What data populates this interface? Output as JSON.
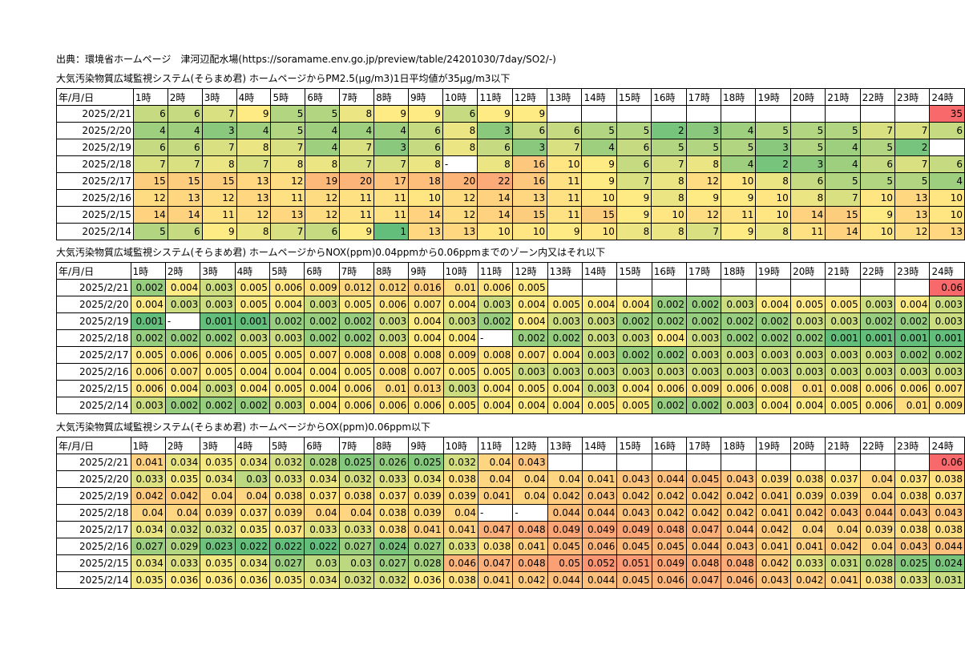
{
  "source": "出典：環境省ホームページ　津河辺配水場(https://soramame.env.go.jp/preview/table/24201030/7day/SO2/-)",
  "header_labels": [
    "年/月/日",
    "1時",
    "2時",
    "3時",
    "4時",
    "5時",
    "6時",
    "7時",
    "8時",
    "9時",
    "10時",
    "11時",
    "12時",
    "13時",
    "14時",
    "15時",
    "16時",
    "17時",
    "18時",
    "19時",
    "20時",
    "21時",
    "22時",
    "23時",
    "24時"
  ],
  "dates": [
    "2025/2/21",
    "2025/2/20",
    "2025/2/19",
    "2025/2/18",
    "2025/2/17",
    "2025/2/16",
    "2025/2/15",
    "2025/2/14"
  ],
  "sections": [
    {
      "title": "大気汚染物質広域監視システム(そらまめ君) ホームページからPM2.5(μg/m3)1日平均値が35μg/m3以下",
      "scale": {
        "low": 1,
        "mid": 9,
        "high": 35
      },
      "rows": [
        [
          "6",
          "6",
          "7",
          "9",
          "5",
          "5",
          "8",
          "9",
          "9",
          "6",
          "9",
          "9",
          "",
          "",
          "",
          "",
          "",
          "",
          "",
          "",
          "",
          "",
          "",
          "35"
        ],
        [
          "4",
          "4",
          "3",
          "4",
          "5",
          "4",
          "4",
          "4",
          "6",
          "8",
          "3",
          "6",
          "6",
          "5",
          "5",
          "2",
          "3",
          "4",
          "5",
          "5",
          "5",
          "7",
          "7",
          "6"
        ],
        [
          "6",
          "6",
          "7",
          "8",
          "7",
          "4",
          "7",
          "3",
          "6",
          "8",
          "6",
          "3",
          "7",
          "4",
          "6",
          "5",
          "5",
          "5",
          "3",
          "5",
          "4",
          "5",
          "2",
          ""
        ],
        [
          "7",
          "7",
          "8",
          "7",
          "8",
          "8",
          "7",
          "7",
          "8",
          "-",
          "8",
          "16",
          "10",
          "9",
          "6",
          "7",
          "8",
          "4",
          "2",
          "3",
          "4",
          "6",
          "7",
          "6"
        ],
        [
          "15",
          "15",
          "15",
          "13",
          "12",
          "19",
          "20",
          "17",
          "18",
          "20",
          "22",
          "16",
          "11",
          "9",
          "7",
          "8",
          "12",
          "10",
          "8",
          "6",
          "5",
          "5",
          "5",
          "4"
        ],
        [
          "12",
          "13",
          "12",
          "13",
          "11",
          "12",
          "11",
          "11",
          "10",
          "12",
          "14",
          "13",
          "11",
          "10",
          "9",
          "8",
          "9",
          "9",
          "10",
          "8",
          "7",
          "10",
          "13",
          "10"
        ],
        [
          "14",
          "14",
          "11",
          "12",
          "13",
          "12",
          "11",
          "11",
          "14",
          "12",
          "14",
          "15",
          "11",
          "15",
          "9",
          "10",
          "12",
          "11",
          "10",
          "14",
          "15",
          "9",
          "13",
          "10"
        ],
        [
          "5",
          "6",
          "9",
          "8",
          "7",
          "6",
          "9",
          "1",
          "13",
          "13",
          "10",
          "10",
          "9",
          "10",
          "8",
          "8",
          "7",
          "9",
          "8",
          "11",
          "14",
          "10",
          "12",
          "13"
        ]
      ]
    },
    {
      "title": "大気汚染物質広域監視システム(そらまめ君) ホームページからNOX(ppm)0.04ppmから0.06ppmまでのゾーン内又はそれ以下",
      "scale": {
        "low": 0.001,
        "mid": 0.004,
        "high": 0.06
      },
      "rows": [
        [
          "0.002",
          "0.004",
          "0.003",
          "0.005",
          "0.006",
          "0.009",
          "0.012",
          "0.012",
          "0.016",
          "0.01",
          "0.006",
          "0.005",
          "",
          "",
          "",
          "",
          "",
          "",
          "",
          "",
          "",
          "",
          "",
          "0.06"
        ],
        [
          "0.004",
          "0.003",
          "0.003",
          "0.005",
          "0.004",
          "0.003",
          "0.005",
          "0.006",
          "0.007",
          "0.004",
          "0.003",
          "0.004",
          "0.005",
          "0.004",
          "0.004",
          "0.002",
          "0.002",
          "0.003",
          "0.004",
          "0.005",
          "0.005",
          "0.003",
          "0.004",
          "0.003"
        ],
        [
          "0.001",
          "-",
          "0.001",
          "0.001",
          "0.002",
          "0.002",
          "0.002",
          "0.003",
          "0.004",
          "0.003",
          "0.002",
          "0.004",
          "0.003",
          "0.003",
          "0.002",
          "0.002",
          "0.002",
          "0.002",
          "0.002",
          "0.003",
          "0.003",
          "0.002",
          "0.002",
          "0.003"
        ],
        [
          "0.002",
          "0.002",
          "0.002",
          "0.003",
          "0.003",
          "0.002",
          "0.002",
          "0.003",
          "0.004",
          "0.004",
          "-",
          "0.002",
          "0.002",
          "0.003",
          "0.003",
          "0.004",
          "0.003",
          "0.002",
          "0.002",
          "0.002",
          "0.001",
          "0.001",
          "0.001",
          "0.001"
        ],
        [
          "0.005",
          "0.006",
          "0.006",
          "0.005",
          "0.005",
          "0.007",
          "0.008",
          "0.008",
          "0.008",
          "0.009",
          "0.008",
          "0.007",
          "0.004",
          "0.003",
          "0.002",
          "0.002",
          "0.003",
          "0.003",
          "0.003",
          "0.003",
          "0.003",
          "0.003",
          "0.002",
          "0.002"
        ],
        [
          "0.006",
          "0.007",
          "0.005",
          "0.004",
          "0.004",
          "0.004",
          "0.005",
          "0.008",
          "0.007",
          "0.005",
          "0.005",
          "0.003",
          "0.003",
          "0.003",
          "0.003",
          "0.003",
          "0.003",
          "0.003",
          "0.003",
          "0.003",
          "0.003",
          "0.003",
          "0.003",
          "0.003"
        ],
        [
          "0.006",
          "0.004",
          "0.003",
          "0.004",
          "0.005",
          "0.004",
          "0.006",
          "0.01",
          "0.013",
          "0.003",
          "0.004",
          "0.005",
          "0.004",
          "0.003",
          "0.004",
          "0.006",
          "0.009",
          "0.006",
          "0.008",
          "0.01",
          "0.008",
          "0.006",
          "0.006",
          "0.007"
        ],
        [
          "0.003",
          "0.002",
          "0.002",
          "0.002",
          "0.003",
          "0.004",
          "0.006",
          "0.006",
          "0.006",
          "0.005",
          "0.004",
          "0.004",
          "0.004",
          "0.005",
          "0.005",
          "0.002",
          "0.002",
          "0.003",
          "0.004",
          "0.004",
          "0.005",
          "0.006",
          "0.01",
          "0.009"
        ]
      ]
    },
    {
      "title": "大気汚染物質広域監視システム(そらまめ君) ホームページからOX(ppm)0.06ppm以下",
      "scale": {
        "low": 0.022,
        "mid": 0.036,
        "high": 0.06
      },
      "rows": [
        [
          "0.041",
          "0.034",
          "0.035",
          "0.034",
          "0.032",
          "0.028",
          "0.025",
          "0.026",
          "0.025",
          "0.032",
          "0.04",
          "0.043",
          "",
          "",
          "",
          "",
          "",
          "",
          "",
          "",
          "",
          "",
          "",
          "0.06"
        ],
        [
          "0.033",
          "0.035",
          "0.034",
          "0.03",
          "0.033",
          "0.034",
          "0.032",
          "0.033",
          "0.034",
          "0.038",
          "0.04",
          "0.04",
          "0.04",
          "0.041",
          "0.043",
          "0.044",
          "0.045",
          "0.043",
          "0.039",
          "0.038",
          "0.037",
          "0.04",
          "0.037",
          "0.038"
        ],
        [
          "0.042",
          "0.042",
          "0.04",
          "0.04",
          "0.038",
          "0.037",
          "0.038",
          "0.037",
          "0.039",
          "0.039",
          "0.041",
          "0.04",
          "0.042",
          "0.043",
          "0.042",
          "0.042",
          "0.042",
          "0.042",
          "0.041",
          "0.039",
          "0.039",
          "0.04",
          "0.038",
          "0.037"
        ],
        [
          "0.04",
          "0.04",
          "0.039",
          "0.037",
          "0.039",
          "0.04",
          "0.04",
          "0.038",
          "0.039",
          "0.04",
          "-",
          "-",
          "0.044",
          "0.044",
          "0.043",
          "0.042",
          "0.042",
          "0.042",
          "0.041",
          "0.042",
          "0.043",
          "0.044",
          "0.043",
          "0.043"
        ],
        [
          "0.034",
          "0.032",
          "0.032",
          "0.035",
          "0.037",
          "0.033",
          "0.033",
          "0.038",
          "0.041",
          "0.041",
          "0.047",
          "0.048",
          "0.049",
          "0.049",
          "0.049",
          "0.048",
          "0.047",
          "0.044",
          "0.042",
          "0.04",
          "0.04",
          "0.039",
          "0.038",
          "0.038"
        ],
        [
          "0.027",
          "0.029",
          "0.023",
          "0.022",
          "0.022",
          "0.022",
          "0.027",
          "0.024",
          "0.027",
          "0.033",
          "0.038",
          "0.041",
          "0.045",
          "0.046",
          "0.045",
          "0.045",
          "0.044",
          "0.043",
          "0.041",
          "0.041",
          "0.042",
          "0.04",
          "0.043",
          "0.044"
        ],
        [
          "0.034",
          "0.033",
          "0.035",
          "0.034",
          "0.027",
          "0.03",
          "0.03",
          "0.027",
          "0.028",
          "0.046",
          "0.047",
          "0.048",
          "0.05",
          "0.052",
          "0.051",
          "0.049",
          "0.048",
          "0.048",
          "0.042",
          "0.033",
          "0.031",
          "0.028",
          "0.025",
          "0.024"
        ],
        [
          "0.035",
          "0.036",
          "0.036",
          "0.036",
          "0.035",
          "0.034",
          "0.032",
          "0.032",
          "0.036",
          "0.038",
          "0.041",
          "0.042",
          "0.044",
          "0.044",
          "0.045",
          "0.046",
          "0.047",
          "0.046",
          "0.043",
          "0.042",
          "0.041",
          "0.038",
          "0.033",
          "0.031"
        ]
      ]
    }
  ],
  "colors": {
    "low": "#63be7b",
    "mid": "#ffeb84",
    "high": "#f8696b",
    "empty": "#ffffff"
  }
}
